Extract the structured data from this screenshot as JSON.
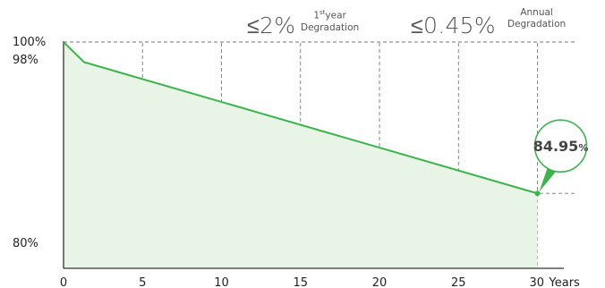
{
  "header": {
    "stat1": {
      "value": "≤2%",
      "label_ordinal": "1",
      "label_suffix": "st",
      "label_top_rest": "year",
      "label_bottom": "Degradation"
    },
    "stat2": {
      "value": "≤0.45%",
      "label_top": "Annual",
      "label_bottom": "Degradation"
    }
  },
  "colors": {
    "line": "#3cb44b",
    "fill": "#e8f5e6",
    "grid": "#777777",
    "axis": "#333333",
    "callout_text": "#444444"
  },
  "chart_data": {
    "type": "line",
    "title": "",
    "xlabel": "",
    "ylabel": "",
    "x_unit_label": "Years",
    "x_ticks": [
      0,
      5,
      10,
      15,
      20,
      25,
      30
    ],
    "y_ticks": [
      {
        "value": 100,
        "label": "100%"
      },
      {
        "value": 98,
        "label": "98%"
      },
      {
        "value": 80,
        "label": "80%"
      }
    ],
    "xlim": [
      0,
      31.5
    ],
    "ylim": [
      77.5,
      100
    ],
    "series": [
      {
        "values": [
          {
            "x": 0,
            "y": 100
          },
          {
            "x": 1.3,
            "y": 98
          },
          {
            "x": 30,
            "y": 84.95
          }
        ]
      }
    ],
    "vertical_gridlines": [
      5,
      10,
      15,
      20,
      25,
      30
    ],
    "horizontal_gridlines": [
      100,
      84.95
    ],
    "grid": true,
    "area_fill": true,
    "callout": {
      "x": 30,
      "y": 84.95,
      "value": "84.95",
      "unit": "%"
    }
  }
}
